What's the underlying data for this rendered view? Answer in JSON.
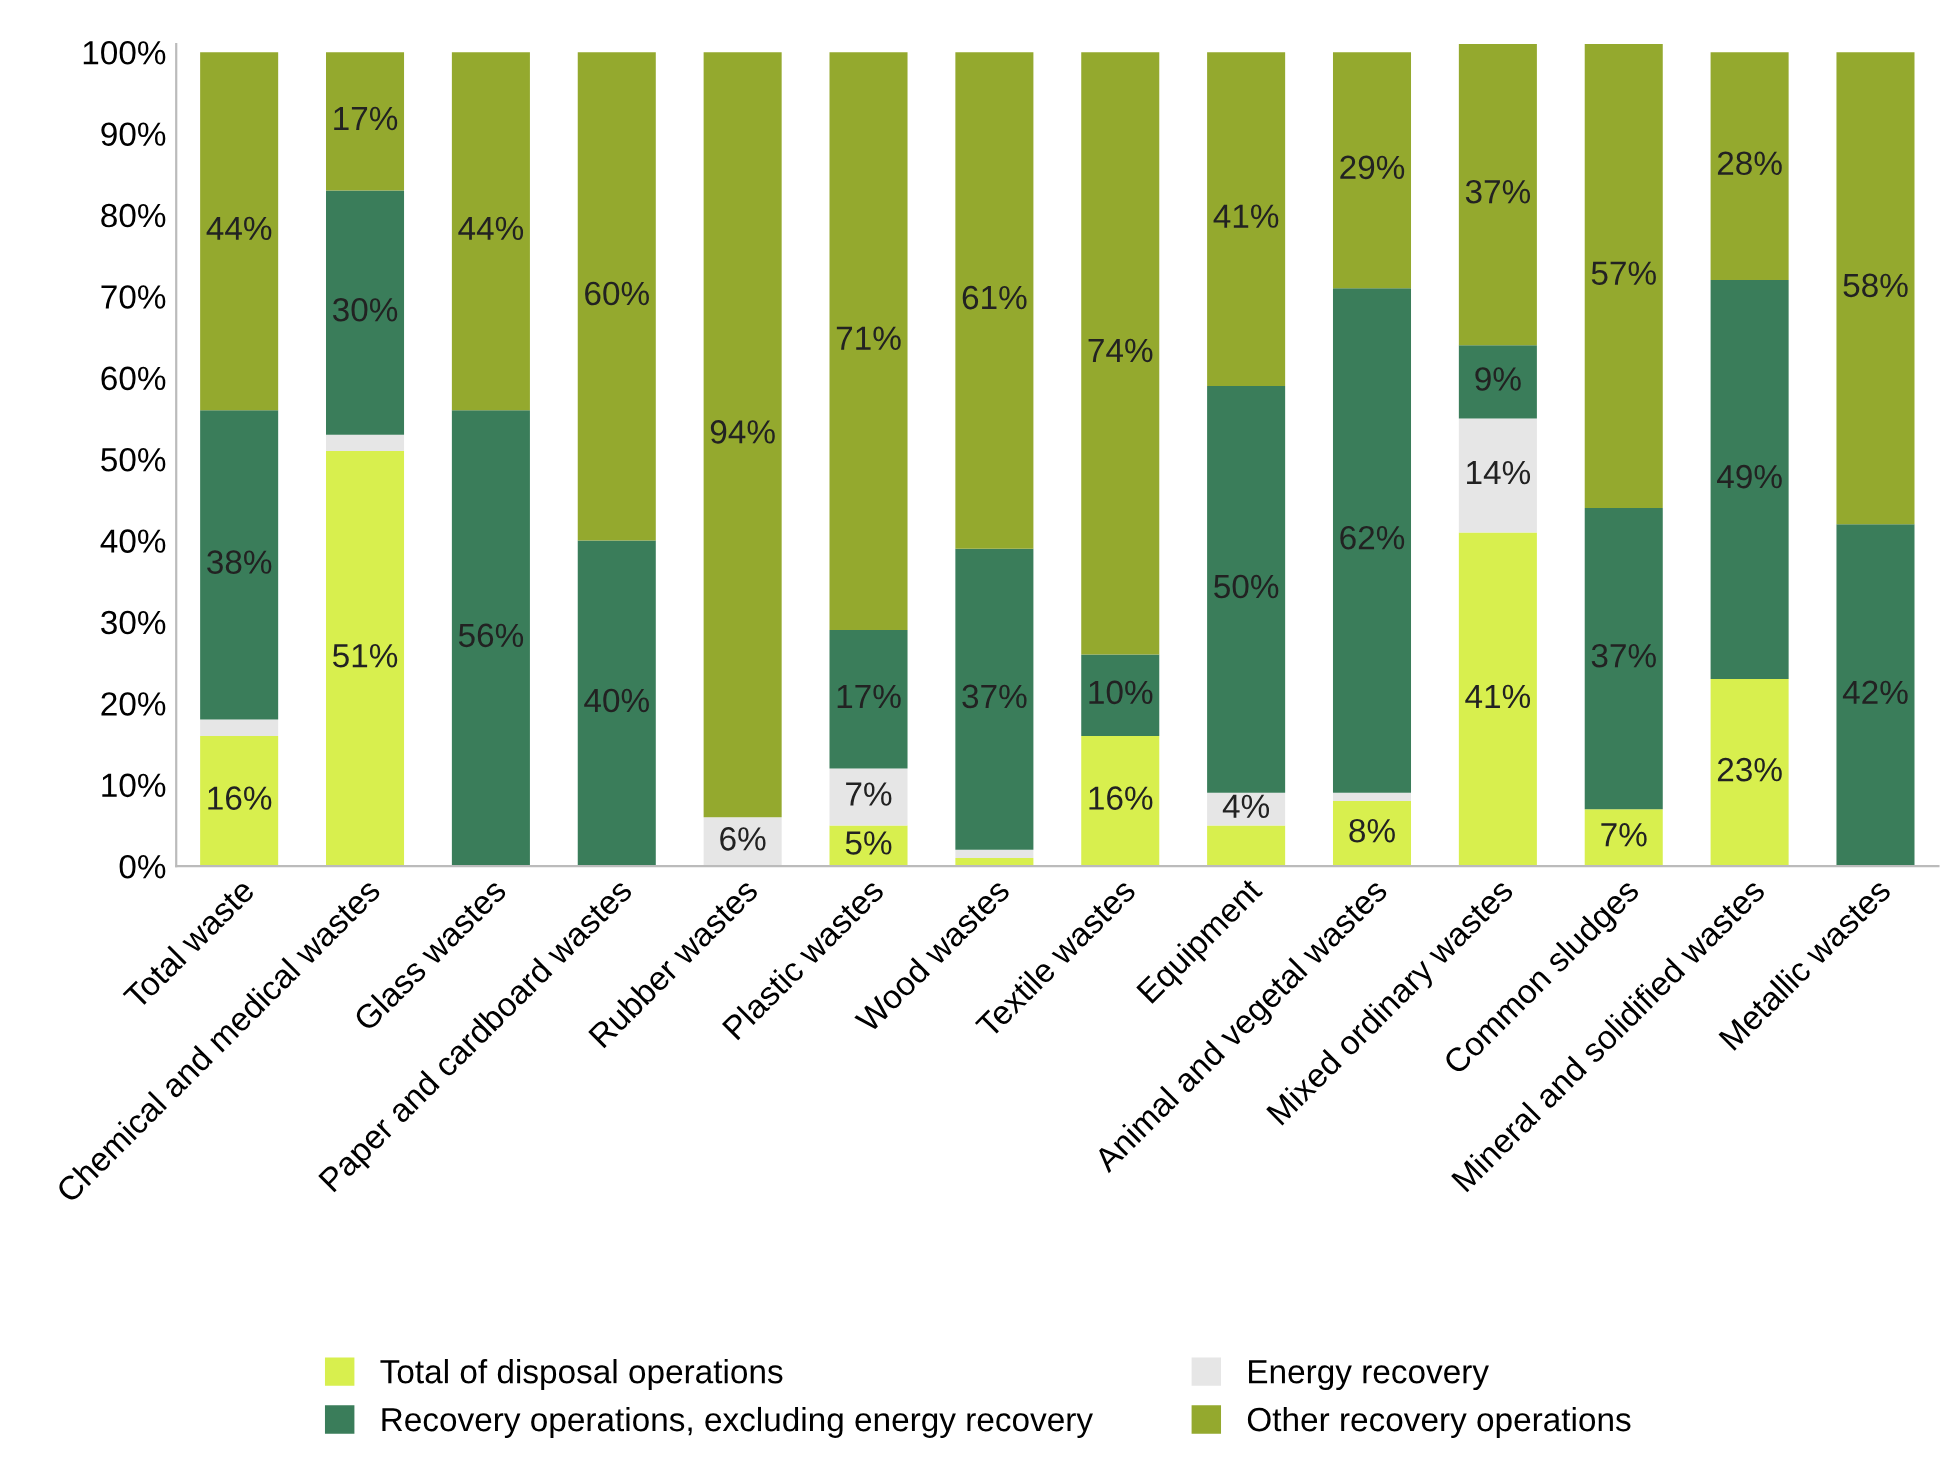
{
  "chart_data": {
    "type": "bar",
    "stacked": true,
    "categories": [
      "Total waste",
      "Chemical and medical wastes",
      "Glass wastes",
      "Paper and cardboard wastes",
      "Rubber wastes",
      "Plastic wastes",
      "Wood wastes",
      "Textile wastes",
      "Equipment",
      "Animal and vegetal wastes",
      "Mixed ordinary wastes",
      "Common sludges",
      "Mineral and solidified wastes",
      "Metallic wastes"
    ],
    "series": [
      {
        "name": "Total of disposal operations",
        "color": "#d8ef4e",
        "values": [
          16,
          51,
          0,
          0,
          0,
          5,
          1,
          16,
          5,
          8,
          41,
          7,
          23,
          0
        ],
        "value_labels": [
          "16%",
          "51%",
          null,
          null,
          null,
          "5%",
          null,
          "16%",
          null,
          "8%",
          "41%",
          "7%",
          "23%",
          null
        ]
      },
      {
        "name": "Energy recovery",
        "color": "#e6e6e6",
        "values": [
          2,
          2,
          0,
          0,
          6,
          7,
          1,
          0,
          4,
          1,
          14,
          0,
          0,
          0
        ],
        "value_labels": [
          null,
          null,
          null,
          null,
          "6%",
          "7%",
          null,
          null,
          "4%",
          null,
          "14%",
          null,
          null,
          null
        ]
      },
      {
        "name": "Recovery operations, excluding energy recovery",
        "color": "#3a7d5a",
        "values": [
          38,
          30,
          56,
          40,
          0,
          17,
          37,
          10,
          50,
          62,
          9,
          37,
          49,
          42
        ],
        "value_labels": [
          "38%",
          "30%",
          "56%",
          "40%",
          null,
          "17%",
          "37%",
          "10%",
          "50%",
          "62%",
          "9%",
          "37%",
          "49%",
          "42%"
        ]
      },
      {
        "name": "Other recovery operations",
        "color": "#94a92e",
        "values": [
          44,
          17,
          44,
          60,
          94,
          71,
          61,
          74,
          41,
          29,
          37,
          57,
          28,
          58
        ],
        "value_labels": [
          "44%",
          "17%",
          "44%",
          "60%",
          "94%",
          "71%",
          "61%",
          "74%",
          "41%",
          "29%",
          "37%",
          "57%",
          "28%",
          "58%"
        ]
      }
    ],
    "ylim": [
      0,
      101
    ],
    "yticks": [
      {
        "value": 0,
        "label": "0%"
      },
      {
        "value": 10,
        "label": "10%"
      },
      {
        "value": 20,
        "label": "20%"
      },
      {
        "value": 30,
        "label": "30%"
      },
      {
        "value": 40,
        "label": "40%"
      },
      {
        "value": 50,
        "label": "50%"
      },
      {
        "value": 60,
        "label": "60%"
      },
      {
        "value": 70,
        "label": "70%"
      },
      {
        "value": 80,
        "label": "80%"
      },
      {
        "value": 90,
        "label": "90%"
      },
      {
        "value": 100,
        "label": "100%"
      }
    ],
    "grid": false,
    "legend": "bottom"
  }
}
